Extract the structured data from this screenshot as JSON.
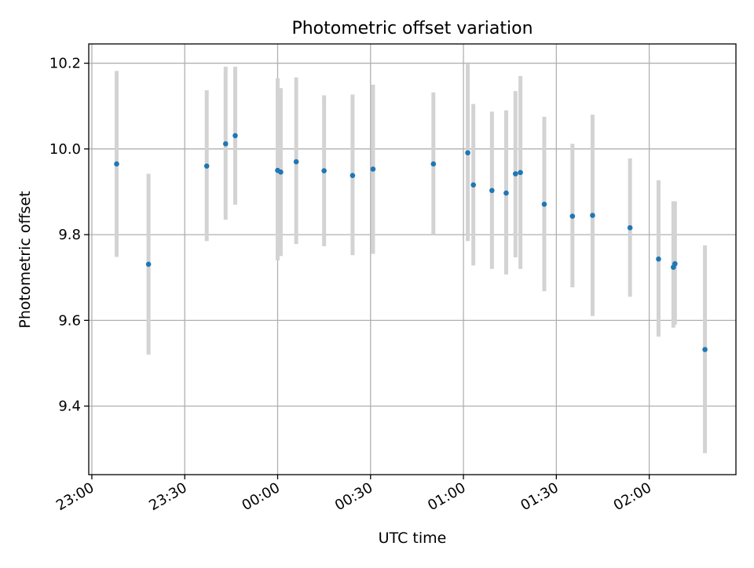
{
  "colors": {
    "point": "#1f77b4",
    "errorbar": "#d3d3d3",
    "grid": "#b0b0b0",
    "axis": "#000000"
  },
  "chart_data": {
    "type": "scatter",
    "title": "Photometric offset variation",
    "xlabel": "UTC time",
    "ylabel": "Photometric offset",
    "grid": true,
    "x_unit": "minutes after 23:00 UTC",
    "xlim": [
      -1,
      208
    ],
    "ylim": [
      9.24,
      10.245
    ],
    "x_ticks": [
      {
        "value": 0,
        "label": "23:00"
      },
      {
        "value": 30,
        "label": "23:30"
      },
      {
        "value": 60,
        "label": "00:00"
      },
      {
        "value": 90,
        "label": "00:30"
      },
      {
        "value": 120,
        "label": "01:00"
      },
      {
        "value": 150,
        "label": "01:30"
      },
      {
        "value": 180,
        "label": "02:00"
      }
    ],
    "y_ticks": [
      {
        "value": 9.4,
        "label": "9.4"
      },
      {
        "value": 9.6,
        "label": "9.6"
      },
      {
        "value": 9.8,
        "label": "9.8"
      },
      {
        "value": 10.0,
        "label": "10.0"
      },
      {
        "value": 10.2,
        "label": "10.2"
      }
    ],
    "points": [
      {
        "t": 8.0,
        "y": 9.965,
        "lo": 9.748,
        "hi": 10.182
      },
      {
        "t": 18.3,
        "y": 9.731,
        "lo": 9.52,
        "hi": 9.942
      },
      {
        "t": 37.1,
        "y": 9.96,
        "lo": 9.785,
        "hi": 10.137
      },
      {
        "t": 43.2,
        "y": 10.012,
        "lo": 9.835,
        "hi": 10.192
      },
      {
        "t": 46.3,
        "y": 10.031,
        "lo": 9.87,
        "hi": 10.192
      },
      {
        "t": 60.0,
        "y": 9.95,
        "lo": 9.74,
        "hi": 10.165
      },
      {
        "t": 61.0,
        "y": 9.946,
        "lo": 9.75,
        "hi": 10.142
      },
      {
        "t": 66.0,
        "y": 9.97,
        "lo": 9.778,
        "hi": 10.167
      },
      {
        "t": 75.0,
        "y": 9.949,
        "lo": 9.773,
        "hi": 10.125
      },
      {
        "t": 84.2,
        "y": 9.938,
        "lo": 9.752,
        "hi": 10.127
      },
      {
        "t": 90.8,
        "y": 9.953,
        "lo": 9.755,
        "hi": 10.15
      },
      {
        "t": 110.3,
        "y": 9.965,
        "lo": 9.8,
        "hi": 10.132
      },
      {
        "t": 121.4,
        "y": 9.991,
        "lo": 9.785,
        "hi": 10.198
      },
      {
        "t": 123.2,
        "y": 9.916,
        "lo": 9.728,
        "hi": 10.105
      },
      {
        "t": 129.2,
        "y": 9.903,
        "lo": 9.72,
        "hi": 10.087
      },
      {
        "t": 133.8,
        "y": 9.897,
        "lo": 9.707,
        "hi": 10.09
      },
      {
        "t": 136.8,
        "y": 9.942,
        "lo": 9.747,
        "hi": 10.135
      },
      {
        "t": 138.4,
        "y": 9.945,
        "lo": 9.72,
        "hi": 10.17
      },
      {
        "t": 146.1,
        "y": 9.871,
        "lo": 9.668,
        "hi": 10.075
      },
      {
        "t": 155.2,
        "y": 9.843,
        "lo": 9.677,
        "hi": 10.012
      },
      {
        "t": 161.7,
        "y": 9.845,
        "lo": 9.61,
        "hi": 10.08
      },
      {
        "t": 173.8,
        "y": 9.816,
        "lo": 9.655,
        "hi": 9.978
      },
      {
        "t": 183.0,
        "y": 9.743,
        "lo": 9.562,
        "hi": 9.927
      },
      {
        "t": 187.8,
        "y": 9.724,
        "lo": 9.583,
        "hi": 9.878
      },
      {
        "t": 188.3,
        "y": 9.732,
        "lo": 9.59,
        "hi": 9.878
      },
      {
        "t": 198.0,
        "y": 9.532,
        "lo": 9.29,
        "hi": 9.775
      }
    ]
  }
}
